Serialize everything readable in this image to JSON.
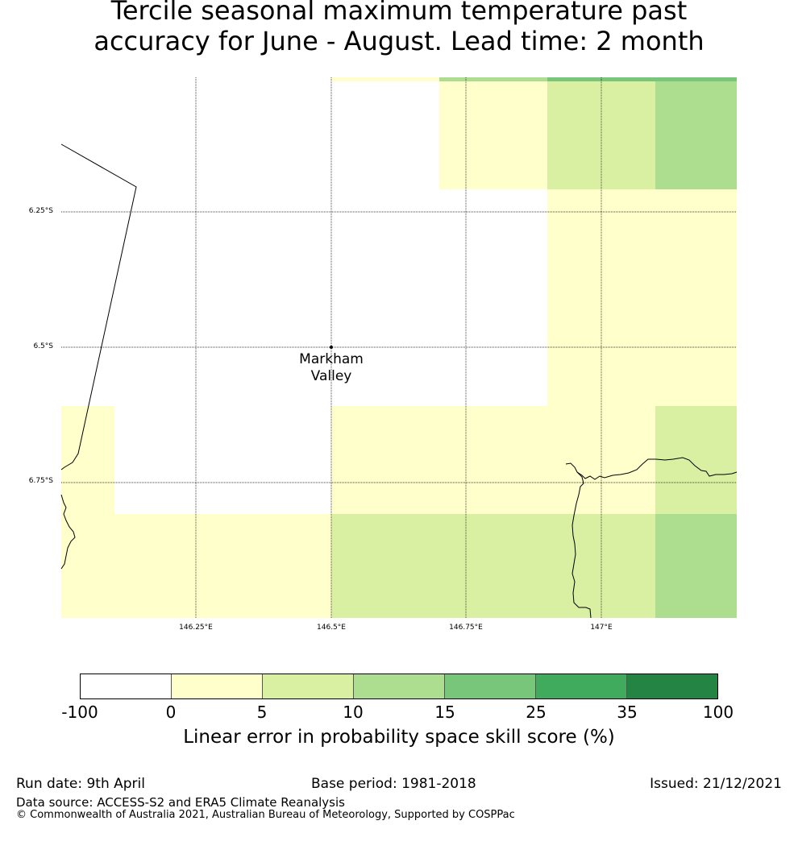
{
  "title": {
    "line1": "Tercile seasonal maximum temperature past",
    "line2": "accuracy for June - August. Lead time: 2 month"
  },
  "map": {
    "lat_labels": [
      "6.25°S",
      "6.5°S",
      "6.75°S"
    ],
    "lon_labels": [
      "146.25°E",
      "146.5°E",
      "146.75°E",
      "147°E"
    ],
    "place": {
      "name_line1": "Markham",
      "name_line2": "Valley"
    }
  },
  "colorbar": {
    "colors": [
      "#ffffff",
      "#ffffcc",
      "#d9f0a3",
      "#addd8e",
      "#78c679",
      "#41ab5d",
      "#238443"
    ],
    "ticks": [
      "-100",
      "0",
      "5",
      "10",
      "15",
      "25",
      "35",
      "100"
    ],
    "label": "Linear error in probability space skill score (%)"
  },
  "footer": {
    "run_date": "Run date: 9th April",
    "base_period": "Base period: 1981-2018",
    "issued": "Issued: 21/12/2021",
    "data_source": "Data source: ACCESS-S2 and ERA5 Climate Reanalysis",
    "copyright": "© Commonwealth of Australia 2021, Australian Bureau of Meteorology, Supported by COSPPac"
  }
}
